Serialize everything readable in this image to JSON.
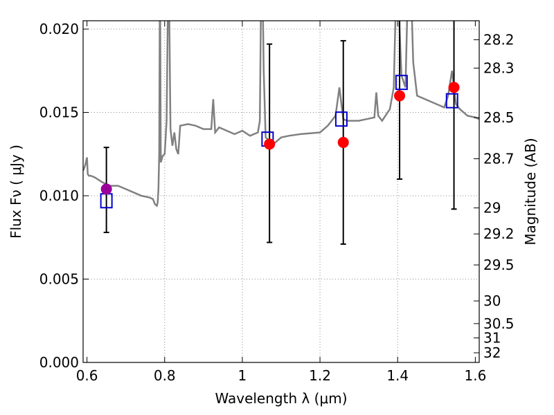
{
  "chart_data": {
    "type": "scatter",
    "xlabel": "Wavelength  λ (μm)",
    "ylabel": "Flux  Fν  ( μJy )",
    "ylabel_right": "Magnitude (AB)",
    "xlim": [
      0.59,
      1.61
    ],
    "ylim": [
      0.0,
      0.0205
    ],
    "x_ticks": [
      0.6,
      0.8,
      1.0,
      1.2,
      1.4,
      1.6
    ],
    "x_tick_labels": [
      "0.6",
      "0.8",
      "1",
      "1.2",
      "1.4",
      "1.6"
    ],
    "y_ticks": [
      0.0,
      0.005,
      0.01,
      0.015,
      0.02
    ],
    "y_tick_labels": [
      "0.000",
      "0.005",
      "0.010",
      "0.015",
      "0.020"
    ],
    "right_ticks": [
      {
        "label": "28.2",
        "flux": 0.01936
      },
      {
        "label": "28.3",
        "flux": 0.01766
      },
      {
        "label": "28.5",
        "flux": 0.01469
      },
      {
        "label": "28.7",
        "flux": 0.01222
      },
      {
        "label": "29",
        "flux": 0.00927
      },
      {
        "label": "29.2",
        "flux": 0.00771
      },
      {
        "label": "29.5",
        "flux": 0.00585
      },
      {
        "label": "30",
        "flux": 0.00369
      },
      {
        "label": "30.5",
        "flux": 0.00233
      },
      {
        "label": "31",
        "flux": 0.00147
      },
      {
        "label": "32",
        "flux": 0.00058
      }
    ],
    "grid": true,
    "colors": {
      "model": "#808080",
      "observed": "#ff0000",
      "observed_optical": "#990099",
      "synthetic": "#0000cc",
      "errorbar": "#000000"
    },
    "series": [
      {
        "kind": "model_spectrum",
        "x": [
          0.59,
          0.595,
          0.6,
          0.602,
          0.605,
          0.61,
          0.62,
          0.64,
          0.66,
          0.68,
          0.7,
          0.72,
          0.74,
          0.76,
          0.77,
          0.775,
          0.78,
          0.782,
          0.784,
          0.786,
          0.788,
          0.79,
          0.795,
          0.8,
          0.805,
          0.81,
          0.815,
          0.82,
          0.825,
          0.83,
          0.835,
          0.84,
          0.86,
          0.88,
          0.9,
          0.92,
          0.925,
          0.93,
          0.94,
          0.96,
          0.98,
          1.0,
          1.02,
          1.04,
          1.045,
          1.05,
          1.055,
          1.06,
          1.07,
          1.08,
          1.1,
          1.12,
          1.15,
          1.2,
          1.22,
          1.24,
          1.25,
          1.26,
          1.27,
          1.3,
          1.32,
          1.34,
          1.345,
          1.35,
          1.36,
          1.38,
          1.39,
          1.4,
          1.405,
          1.41,
          1.42,
          1.43,
          1.44,
          1.45,
          1.5,
          1.52,
          1.53,
          1.54,
          1.55,
          1.56,
          1.58,
          1.6,
          1.61
        ],
        "y": [
          0.0115,
          0.0118,
          0.0123,
          0.0113,
          0.0112,
          0.0112,
          0.0111,
          0.0108,
          0.0106,
          0.0106,
          0.0104,
          0.0102,
          0.01,
          0.0099,
          0.0098,
          0.0095,
          0.0094,
          0.0096,
          0.0104,
          0.0125,
          0.024,
          0.012,
          0.0124,
          0.0125,
          0.0145,
          0.025,
          0.014,
          0.013,
          0.0138,
          0.0128,
          0.0125,
          0.0142,
          0.0143,
          0.0142,
          0.014,
          0.014,
          0.0158,
          0.0138,
          0.0141,
          0.0139,
          0.0137,
          0.0139,
          0.0136,
          0.0138,
          0.0145,
          0.026,
          0.0175,
          0.0135,
          0.0133,
          0.0131,
          0.0135,
          0.0136,
          0.0137,
          0.0138,
          0.0142,
          0.0148,
          0.0165,
          0.0146,
          0.0145,
          0.0145,
          0.0146,
          0.0147,
          0.0162,
          0.0148,
          0.0145,
          0.0152,
          0.0165,
          0.026,
          0.02,
          0.0172,
          0.0165,
          0.026,
          0.018,
          0.016,
          0.0155,
          0.0153,
          0.016,
          0.0175,
          0.0155,
          0.0152,
          0.0148,
          0.0147,
          0.0146
        ]
      },
      {
        "kind": "observed",
        "x": [
          0.65,
          1.07,
          1.26,
          1.405,
          1.545
        ],
        "y": [
          0.0104,
          0.0131,
          0.0132,
          0.016,
          0.0165
        ],
        "yerr_low": [
          0.0078,
          0.0072,
          0.0071,
          0.011,
          0.0092
        ],
        "yerr_high": [
          0.0129,
          0.0191,
          0.0193,
          0.0205,
          0.0205
        ]
      },
      {
        "kind": "synthetic_photometry",
        "x": [
          0.65,
          1.065,
          1.255,
          1.41,
          1.54
        ],
        "y": [
          0.0097,
          0.0134,
          0.0146,
          0.0168,
          0.0157
        ]
      }
    ]
  }
}
